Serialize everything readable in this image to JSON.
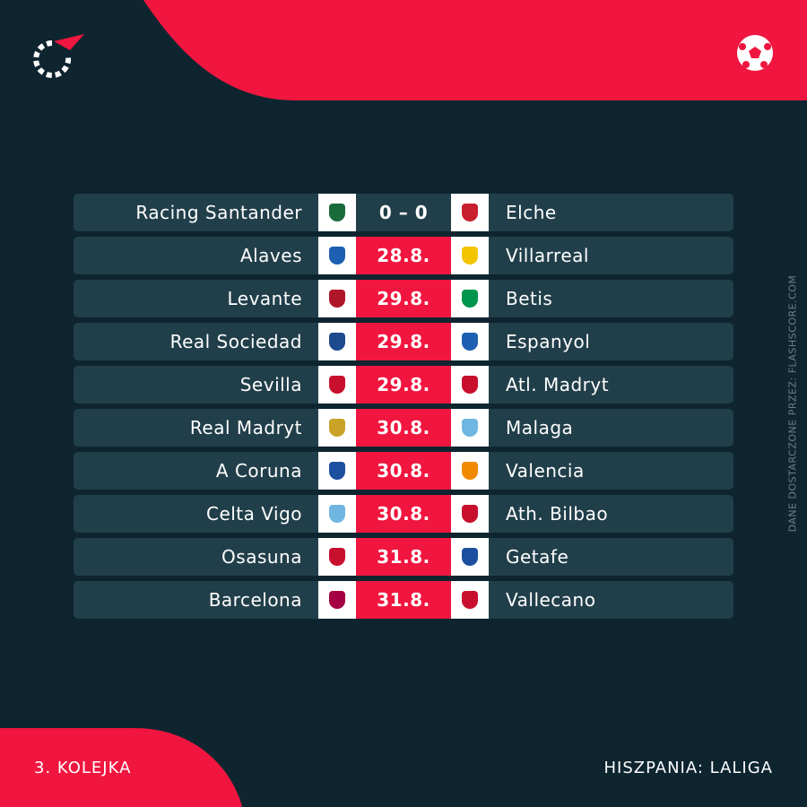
{
  "matches": [
    {
      "home": "Racing Santander",
      "middle": "0 – 0",
      "away": "Elche"
    },
    {
      "home": "Alaves",
      "middle": "28.8.",
      "away": "Villarreal"
    },
    {
      "home": "Levante",
      "middle": "29.8.",
      "away": "Betis"
    },
    {
      "home": "Real Sociedad",
      "middle": "29.8.",
      "away": "Espanyol"
    },
    {
      "home": "Sevilla",
      "middle": "29.8.",
      "away": "Atl. Madryt"
    },
    {
      "home": "Real Madryt",
      "middle": "30.8.",
      "away": "Malaga"
    },
    {
      "home": "A Coruna",
      "middle": "30.8.",
      "away": "Valencia"
    },
    {
      "home": "Celta Vigo",
      "middle": "30.8.",
      "away": "Ath. Bilbao"
    },
    {
      "home": "Osasuna",
      "middle": "31.8.",
      "away": "Getafe"
    },
    {
      "home": "Barcelona",
      "middle": "31.8.",
      "away": "Vallecano"
    }
  ],
  "footer": {
    "round": "3. KOLEJKA",
    "league": "HISZPANIA: LALIGA"
  },
  "credit": "DANE DOSTARCZONE PRZEZ: FLASHSCORE.COM"
}
